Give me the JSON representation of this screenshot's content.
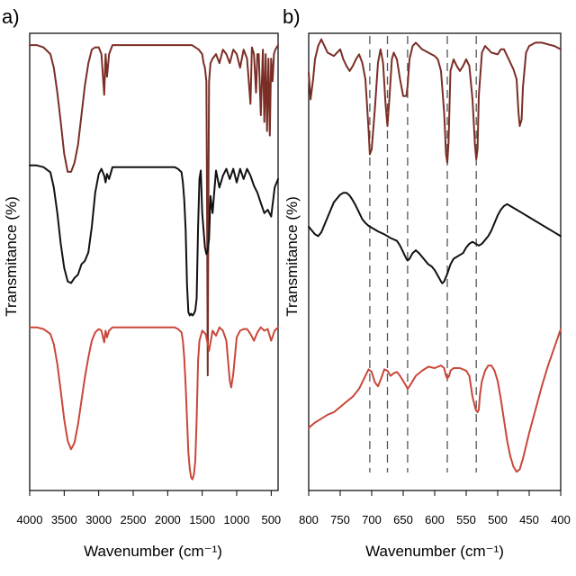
{
  "colors": {
    "brown": "#7a2e26",
    "black": "#111111",
    "red": "#c9473a",
    "dash": "#555555"
  },
  "chart_data": [
    {
      "type": "line",
      "panel_label": "a)",
      "xlabel": "Wavenumber (cm⁻¹)",
      "ylabel": "Transmitance (%)",
      "xlim": [
        4000,
        400
      ],
      "ylim": [
        0,
        300
      ],
      "x_ticks": [
        "4000",
        "3500",
        "3000",
        "2500",
        "2000",
        "1500",
        "1000",
        "500"
      ],
      "x_tick_values": [
        4000,
        3500,
        3000,
        2500,
        2000,
        1500,
        1000,
        500
      ],
      "series": [
        {
          "color_key": "brown",
          "x": [
            4000,
            3900,
            3800,
            3700,
            3650,
            3600,
            3550,
            3500,
            3450,
            3400,
            3350,
            3300,
            3250,
            3200,
            3150,
            3100,
            3050,
            3000,
            2960,
            2920,
            2900,
            2880,
            2850,
            2800,
            2700,
            2600,
            2400,
            2200,
            2000,
            1900,
            1800,
            1700,
            1650,
            1600,
            1550,
            1500,
            1480,
            1460,
            1440,
            1430,
            1420,
            1410,
            1400,
            1380,
            1350,
            1300,
            1250,
            1200,
            1150,
            1100,
            1050,
            1000,
            950,
            900,
            850,
            800,
            780,
            750,
            720,
            700,
            680,
            650,
            620,
            600,
            580,
            560,
            540,
            520,
            500,
            480,
            460,
            440,
            400
          ],
          "y": [
            266,
            266,
            265,
            262,
            256,
            245,
            232,
            218,
            210,
            210,
            214,
            222,
            235,
            248,
            258,
            264,
            265,
            265,
            262,
            244,
            262,
            252,
            262,
            266,
            266,
            266,
            266,
            266,
            266,
            266,
            266,
            266,
            266,
            265,
            264,
            262,
            258,
            256,
            250,
            200,
            120,
            200,
            250,
            258,
            260,
            262,
            258,
            264,
            262,
            258,
            264,
            262,
            256,
            264,
            260,
            240,
            265,
            262,
            245,
            262,
            262,
            235,
            264,
            232,
            262,
            228,
            260,
            226,
            260,
            250,
            262,
            264,
            266
          ]
        },
        {
          "color_key": "black",
          "x": [
            4000,
            3900,
            3800,
            3700,
            3650,
            3600,
            3550,
            3500,
            3450,
            3400,
            3350,
            3300,
            3250,
            3200,
            3150,
            3100,
            3050,
            3000,
            2960,
            2920,
            2900,
            2880,
            2850,
            2800,
            2700,
            2600,
            2400,
            2200,
            2000,
            1900,
            1850,
            1800,
            1780,
            1760,
            1740,
            1720,
            1700,
            1680,
            1660,
            1640,
            1620,
            1600,
            1580,
            1560,
            1540,
            1520,
            1500,
            1480,
            1460,
            1440,
            1420,
            1400,
            1380,
            1350,
            1300,
            1250,
            1200,
            1150,
            1100,
            1050,
            1000,
            950,
            900,
            850,
            800,
            750,
            700,
            650,
            600,
            550,
            500,
            450,
            400
          ],
          "y": [
            188,
            188,
            187,
            184,
            175,
            160,
            142,
            128,
            120,
            119,
            122,
            124,
            130,
            132,
            137,
            152,
            172,
            183,
            186,
            182,
            178,
            183,
            180,
            187,
            187,
            187,
            187,
            187,
            187,
            187,
            186,
            184,
            178,
            168,
            150,
            118,
            102,
            100,
            101,
            100,
            101,
            103,
            110,
            152,
            180,
            185,
            160,
            150,
            140,
            136,
            138,
            145,
            170,
            160,
            185,
            175,
            182,
            186,
            180,
            186,
            178,
            186,
            180,
            186,
            182,
            176,
            172,
            166,
            160,
            162,
            158,
            175,
            180
          ]
        },
        {
          "color_key": "red",
          "x": [
            4000,
            3900,
            3800,
            3700,
            3650,
            3600,
            3550,
            3500,
            3450,
            3400,
            3350,
            3300,
            3250,
            3200,
            3150,
            3100,
            3050,
            3000,
            2960,
            2920,
            2900,
            2880,
            2850,
            2800,
            2700,
            2600,
            2400,
            2200,
            2000,
            1900,
            1850,
            1800,
            1780,
            1760,
            1740,
            1720,
            1700,
            1680,
            1660,
            1640,
            1620,
            1600,
            1580,
            1560,
            1540,
            1500,
            1450,
            1400,
            1350,
            1300,
            1250,
            1200,
            1150,
            1100,
            1080,
            1050,
            1000,
            950,
            900,
            850,
            800,
            750,
            700,
            650,
            600,
            550,
            500,
            450,
            400
          ],
          "y": [
            100,
            100,
            99,
            96,
            90,
            78,
            62,
            45,
            32,
            27,
            31,
            42,
            56,
            70,
            82,
            92,
            97,
            99,
            98,
            91,
            98,
            94,
            98,
            100,
            100,
            100,
            100,
            100,
            100,
            100,
            99,
            97,
            92,
            82,
            65,
            45,
            25,
            15,
            10,
            9,
            12,
            20,
            45,
            80,
            92,
            98,
            96,
            86,
            98,
            95,
            100,
            98,
            92,
            68,
            64,
            72,
            94,
            98,
            99,
            99,
            96,
            92,
            97,
            100,
            98,
            99,
            92,
            98,
            100
          ]
        }
      ]
    },
    {
      "type": "line",
      "panel_label": "b)",
      "xlabel": "Wavenumber (cm⁻¹)",
      "ylabel": "Transmitance (%)",
      "xlim": [
        800,
        400
      ],
      "ylim": [
        0,
        300
      ],
      "x_ticks": [
        "800",
        "750",
        "700",
        "650",
        "600",
        "550",
        "500",
        "450",
        "400"
      ],
      "x_tick_values": [
        800,
        750,
        700,
        650,
        600,
        550,
        500,
        450,
        400
      ],
      "reference_lines_x": [
        703,
        675,
        643,
        580,
        534
      ],
      "series": [
        {
          "color_key": "brown",
          "x": [
            800,
            797,
            793,
            790,
            785,
            780,
            775,
            770,
            760,
            750,
            745,
            740,
            735,
            730,
            725,
            720,
            715,
            710,
            705,
            703,
            700,
            695,
            690,
            686,
            682,
            678,
            675,
            672,
            668,
            665,
            660,
            655,
            650,
            645,
            643,
            640,
            635,
            630,
            625,
            620,
            610,
            600,
            595,
            590,
            585,
            582,
            580,
            578,
            575,
            570,
            565,
            560,
            555,
            550,
            545,
            540,
            536,
            534,
            532,
            530,
            525,
            520,
            515,
            510,
            500,
            495,
            490,
            485,
            480,
            475,
            470,
            467,
            465,
            462,
            460,
            455,
            450,
            440,
            430,
            420,
            410,
            400
          ],
          "y": [
            254,
            238,
            250,
            262,
            270,
            274,
            270,
            266,
            264,
            268,
            262,
            258,
            255,
            258,
            262,
            265,
            260,
            250,
            220,
            205,
            208,
            232,
            260,
            268,
            260,
            235,
            222,
            238,
            262,
            266,
            262,
            250,
            240,
            240,
            246,
            262,
            270,
            272,
            270,
            268,
            266,
            264,
            262,
            255,
            230,
            205,
            200,
            212,
            255,
            262,
            258,
            255,
            258,
            262,
            258,
            238,
            210,
            202,
            208,
            240,
            266,
            270,
            268,
            266,
            265,
            268,
            268,
            264,
            260,
            256,
            250,
            230,
            222,
            226,
            245,
            266,
            270,
            272,
            272,
            271,
            270,
            268
          ]
        },
        {
          "color_key": "black",
          "x": [
            800,
            795,
            790,
            785,
            780,
            775,
            770,
            765,
            760,
            755,
            750,
            745,
            740,
            735,
            730,
            725,
            720,
            715,
            710,
            705,
            700,
            690,
            680,
            670,
            660,
            655,
            650,
            645,
            643,
            640,
            635,
            630,
            625,
            620,
            615,
            610,
            605,
            600,
            595,
            590,
            588,
            585,
            580,
            575,
            570,
            565,
            560,
            555,
            550,
            545,
            540,
            535,
            530,
            525,
            520,
            515,
            510,
            505,
            500,
            495,
            490,
            485,
            480,
            470,
            460,
            450,
            440,
            430,
            420,
            410,
            400
          ],
          "y": [
            140,
            136,
            132,
            130,
            134,
            142,
            150,
            158,
            166,
            170,
            174,
            176,
            176,
            173,
            168,
            162,
            155,
            148,
            144,
            141,
            139,
            135,
            132,
            128,
            125,
            120,
            113,
            106,
            104,
            106,
            112,
            115,
            112,
            108,
            104,
            100,
            98,
            94,
            88,
            82,
            80,
            82,
            90,
            100,
            106,
            108,
            110,
            112,
            118,
            122,
            124,
            122,
            120,
            122,
            126,
            130,
            136,
            144,
            152,
            158,
            162,
            164,
            162,
            158,
            154,
            150,
            146,
            142,
            138,
            134,
            130
          ]
        },
        {
          "color_key": "red",
          "x": [
            800,
            790,
            780,
            770,
            760,
            750,
            740,
            730,
            720,
            715,
            710,
            705,
            700,
            695,
            690,
            685,
            680,
            675,
            670,
            665,
            660,
            655,
            650,
            645,
            643,
            640,
            630,
            620,
            610,
            600,
            590,
            585,
            582,
            580,
            577,
            575,
            570,
            560,
            550,
            545,
            540,
            535,
            532,
            530,
            528,
            525,
            520,
            515,
            510,
            505,
            500,
            495,
            490,
            485,
            480,
            475,
            470,
            465,
            460,
            455,
            450,
            440,
            430,
            420,
            410,
            400
          ],
          "y": [
            60,
            64,
            67,
            70,
            72,
            76,
            80,
            84,
            90,
            95,
            100,
            105,
            103,
            95,
            92,
            98,
            105,
            104,
            100,
            102,
            103,
            100,
            96,
            92,
            90,
            92,
            100,
            104,
            107,
            106,
            108,
            106,
            100,
            98,
            100,
            104,
            106,
            106,
            104,
            100,
            84,
            74,
            72,
            74,
            86,
            96,
            104,
            108,
            108,
            104,
            96,
            82,
            66,
            50,
            38,
            30,
            26,
            28,
            36,
            46,
            56,
            74,
            92,
            108,
            122,
            136
          ]
        }
      ]
    }
  ]
}
